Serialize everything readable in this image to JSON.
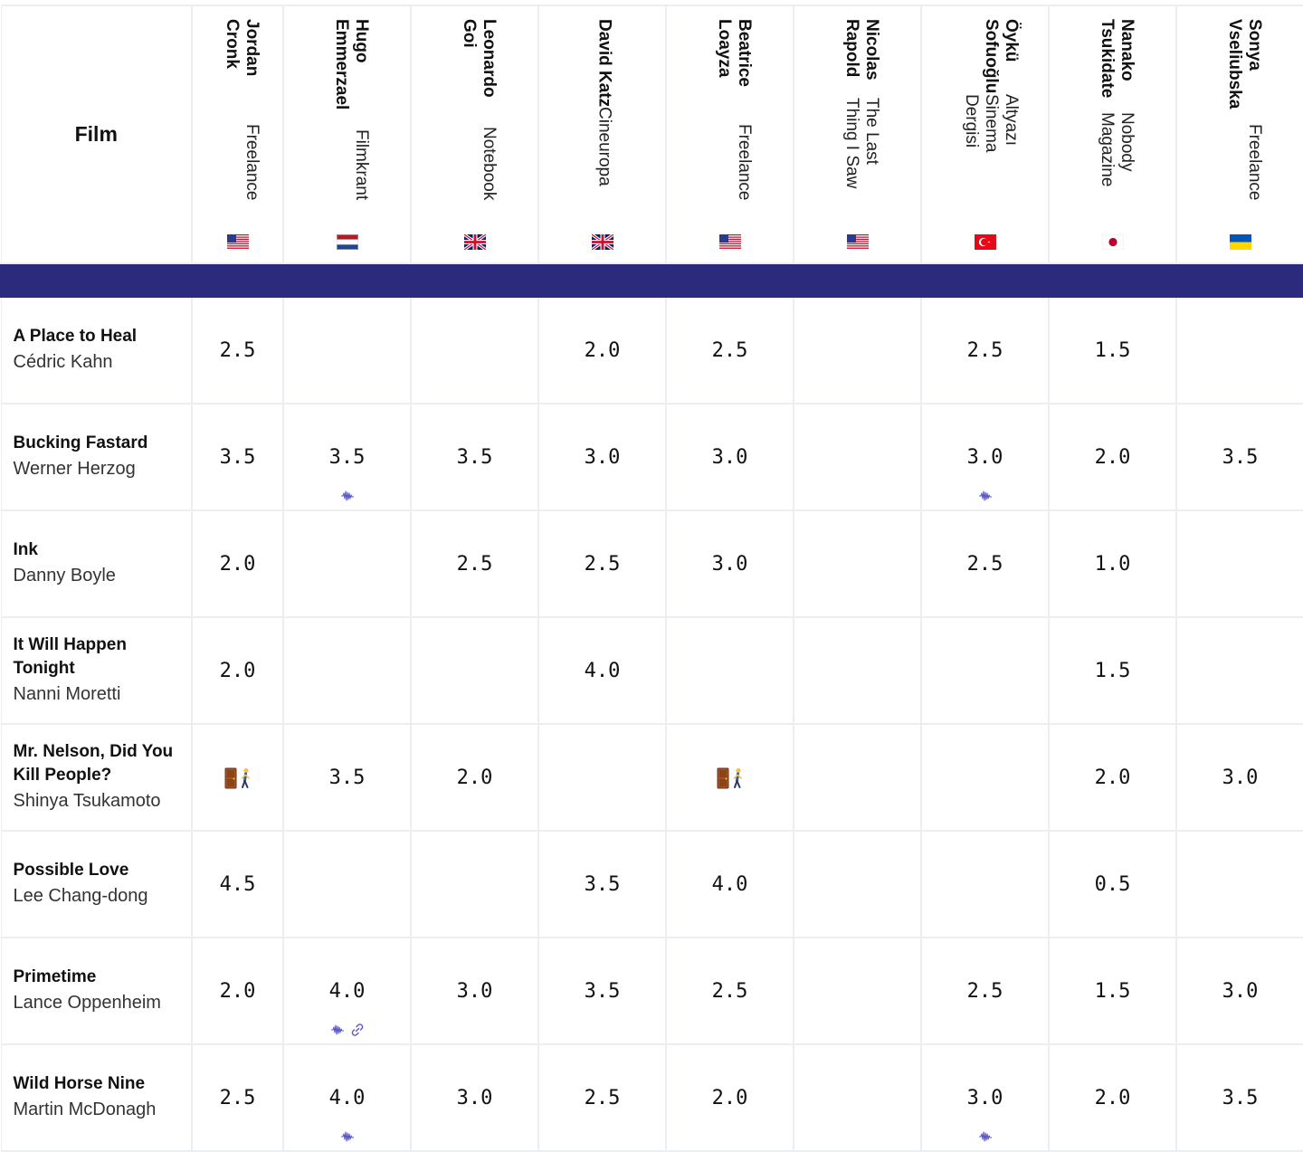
{
  "table": {
    "film_header": "Film",
    "critics": [
      {
        "name": "Jordan Cronk",
        "publication": "Freelance",
        "flag": "us-flag"
      },
      {
        "name": "Hugo Emmerzael",
        "publication": "Filmkrant",
        "flag": "nl-flag"
      },
      {
        "name": "Leonardo Goi",
        "publication": "Notebook",
        "flag": "uk-flag"
      },
      {
        "name": "David Katz",
        "publication": "Cineuropa",
        "flag": "uk-flag"
      },
      {
        "name": "Beatrice Loayza",
        "publication": "Freelance",
        "flag": "us-flag"
      },
      {
        "name": "Nicolas Rapold",
        "publication": "The Last Thing I Saw",
        "flag": "us-flag"
      },
      {
        "name": "Öykü Sofuoğlu",
        "publication": "Altyazı Sinema Dergisi",
        "flag": "tr-flag"
      },
      {
        "name": "Nanako Tsukidate",
        "publication": "Nobody Magazine",
        "flag": "jp-flag"
      },
      {
        "name": "Sonya Vseliubska",
        "publication": "Freelance",
        "flag": "ua-flag"
      }
    ],
    "films": [
      {
        "title": "A Place to Heal",
        "director": "Cédric Kahn",
        "ratings": [
          {
            "v": "2.5"
          },
          {
            "v": ""
          },
          {
            "v": ""
          },
          {
            "v": "2.0"
          },
          {
            "v": "2.5"
          },
          {
            "v": ""
          },
          {
            "v": "2.5"
          },
          {
            "v": "1.5"
          },
          {
            "v": ""
          }
        ]
      },
      {
        "title": "Bucking Fastard",
        "director": "Werner Herzog",
        "ratings": [
          {
            "v": "3.5"
          },
          {
            "v": "3.5",
            "marks": [
              "audio-wave-icon"
            ]
          },
          {
            "v": "3.5"
          },
          {
            "v": "3.0"
          },
          {
            "v": "3.0"
          },
          {
            "v": ""
          },
          {
            "v": "3.0",
            "marks": [
              "audio-wave-icon"
            ]
          },
          {
            "v": "2.0"
          },
          {
            "v": "3.5"
          }
        ]
      },
      {
        "title": "Ink",
        "director": "Danny Boyle",
        "ratings": [
          {
            "v": "2.0"
          },
          {
            "v": ""
          },
          {
            "v": "2.5"
          },
          {
            "v": "2.5"
          },
          {
            "v": "3.0"
          },
          {
            "v": ""
          },
          {
            "v": "2.5"
          },
          {
            "v": "1.0"
          },
          {
            "v": ""
          }
        ]
      },
      {
        "title": "It Will Happen Tonight",
        "director": "Nanni Moretti",
        "ratings": [
          {
            "v": "2.0"
          },
          {
            "v": ""
          },
          {
            "v": ""
          },
          {
            "v": "4.0"
          },
          {
            "v": ""
          },
          {
            "v": ""
          },
          {
            "v": ""
          },
          {
            "v": "1.5"
          },
          {
            "v": ""
          }
        ]
      },
      {
        "title": "Mr. Nelson, Did You Kill People?",
        "director": "Shinya Tsukamoto",
        "ratings": [
          {
            "v": "",
            "walkout": true
          },
          {
            "v": "3.5"
          },
          {
            "v": "2.0"
          },
          {
            "v": ""
          },
          {
            "v": "",
            "walkout": true
          },
          {
            "v": ""
          },
          {
            "v": ""
          },
          {
            "v": "2.0"
          },
          {
            "v": "3.0"
          }
        ]
      },
      {
        "title": "Possible Love",
        "director": "Lee Chang-dong",
        "ratings": [
          {
            "v": "4.5"
          },
          {
            "v": ""
          },
          {
            "v": ""
          },
          {
            "v": "3.5"
          },
          {
            "v": "4.0"
          },
          {
            "v": ""
          },
          {
            "v": ""
          },
          {
            "v": "0.5"
          },
          {
            "v": ""
          }
        ]
      },
      {
        "title": "Primetime",
        "director": "Lance Oppenheim",
        "ratings": [
          {
            "v": "2.0"
          },
          {
            "v": "4.0",
            "marks": [
              "audio-wave-icon",
              "link-icon"
            ]
          },
          {
            "v": "3.0"
          },
          {
            "v": "3.5"
          },
          {
            "v": "2.5"
          },
          {
            "v": ""
          },
          {
            "v": "2.5"
          },
          {
            "v": "1.5"
          },
          {
            "v": "3.0"
          }
        ]
      },
      {
        "title": "Wild Horse Nine",
        "director": "Martin McDonagh",
        "ratings": [
          {
            "v": "2.5"
          },
          {
            "v": "4.0",
            "marks": [
              "audio-wave-icon"
            ]
          },
          {
            "v": "3.0"
          },
          {
            "v": "2.5"
          },
          {
            "v": "2.0"
          },
          {
            "v": ""
          },
          {
            "v": "3.0",
            "marks": [
              "audio-wave-icon"
            ]
          },
          {
            "v": "2.0"
          },
          {
            "v": "3.5"
          }
        ]
      }
    ]
  },
  "colors": {
    "band": "#2c2a7c",
    "icon": "#5856c9",
    "border": "#eceef3"
  }
}
